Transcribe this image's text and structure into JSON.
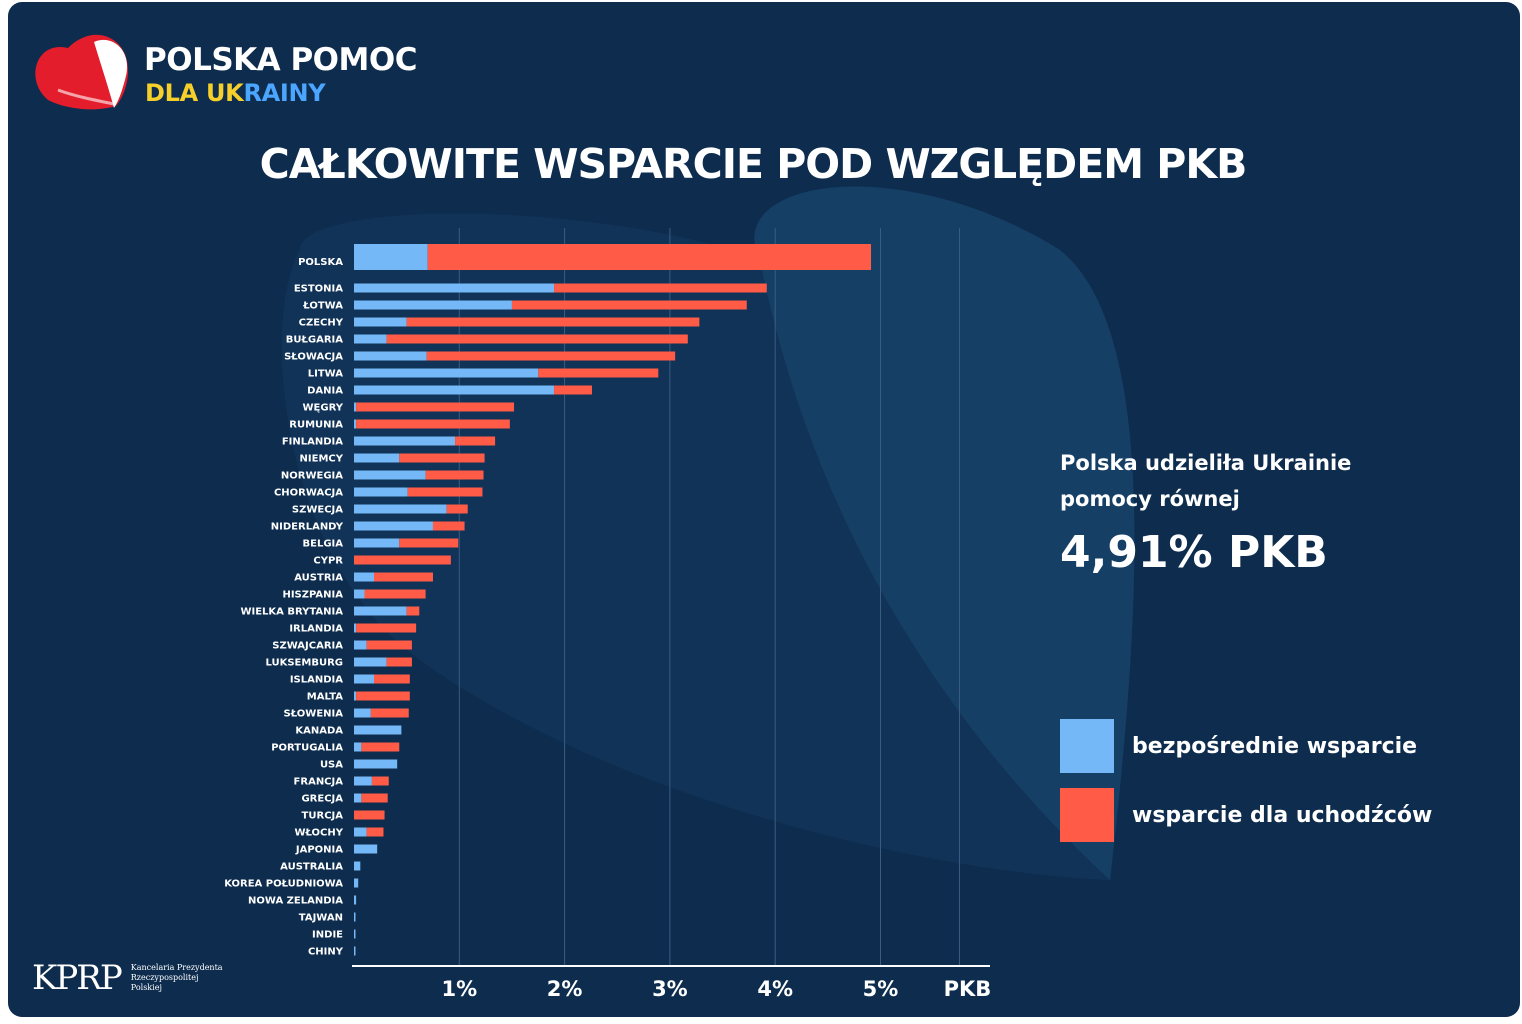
{
  "brand": {
    "title": "POLSKA POMOC",
    "subtitle_part1": "DLA UK",
    "subtitle_part2": "RAINY"
  },
  "footer": {
    "logo_text": "KPRP",
    "org_name": "Kancelaria Prezydenta Rzeczypospolitej Polskiej"
  },
  "annotation": {
    "line1": "Polska udzieliła Ukrainie",
    "line2": "pomocy równej",
    "value": "4,91% PKB"
  },
  "colors": {
    "background": "#0e2d4e",
    "direct": "#74b8f7",
    "refugee": "#ff5b47",
    "logo_red": "#e31d2c",
    "logo_yellow": "#f6cf2a",
    "logo_blue": "#4ba6ff"
  },
  "chart_data": {
    "type": "bar",
    "orientation": "horizontal",
    "stacked": true,
    "title": "CAŁKOWITE WSPARCIE  POD WZGLĘDEM PKB",
    "xlabel": "PKB",
    "xlim": [
      0,
      5.75
    ],
    "x_ticks": [
      "1%",
      "2%",
      "3%",
      "4%",
      "5%"
    ],
    "grid": true,
    "legend_position": "right",
    "categories": [
      "POLSKA",
      "ESTONIA",
      "ŁOTWA",
      "CZECHY",
      "BUŁGARIA",
      "SŁOWACJA",
      "LITWA",
      "DANIA",
      "WĘGRY",
      "RUMUNIA",
      "FINLANDIA",
      "NIEMCY",
      "NORWEGIA",
      "CHORWACJA",
      "SZWECJA",
      "NIDERLANDY",
      "BELGIA",
      "CYPR",
      "AUSTRIA",
      "HISZPANIA",
      "WIELKA BRYTANIA",
      "IRLANDIA",
      "SZWAJCARIA",
      "LUKSEMBURG",
      "ISLANDIA",
      "MALTA",
      "SŁOWENIA",
      "KANADA",
      "PORTUGALIA",
      "USA",
      "FRANCJA",
      "GRECJA",
      "TURCJA",
      "WŁOCHY",
      "JAPONIA",
      "AUSTRALIA",
      "KOREA POŁUDNIOWA",
      "NOWA ZELANDIA",
      "TAJWAN",
      "INDIE",
      "CHINY"
    ],
    "series": [
      {
        "name": "bezpośrednie wsparcie",
        "values": [
          0.7,
          1.9,
          1.5,
          0.5,
          0.31,
          0.69,
          1.75,
          1.9,
          0.02,
          0.02,
          0.96,
          0.43,
          0.68,
          0.51,
          0.88,
          0.75,
          0.43,
          0.0,
          0.19,
          0.1,
          0.5,
          0.02,
          0.12,
          0.31,
          0.19,
          0.02,
          0.16,
          0.45,
          0.07,
          0.41,
          0.17,
          0.07,
          0.0,
          0.12,
          0.22,
          0.06,
          0.04,
          0.02,
          0.01,
          0.01,
          0.01
        ]
      },
      {
        "name": "wsparcie dla uchodźców",
        "values": [
          4.21,
          2.02,
          2.23,
          2.78,
          2.86,
          2.36,
          1.14,
          0.36,
          1.5,
          1.46,
          0.38,
          0.81,
          0.55,
          0.71,
          0.2,
          0.3,
          0.56,
          0.92,
          0.56,
          0.58,
          0.12,
          0.57,
          0.43,
          0.24,
          0.34,
          0.51,
          0.36,
          0.0,
          0.36,
          0.0,
          0.16,
          0.25,
          0.29,
          0.16,
          0.0,
          0.0,
          0.0,
          0.0,
          0.0,
          0.0,
          0.0
        ]
      }
    ]
  }
}
